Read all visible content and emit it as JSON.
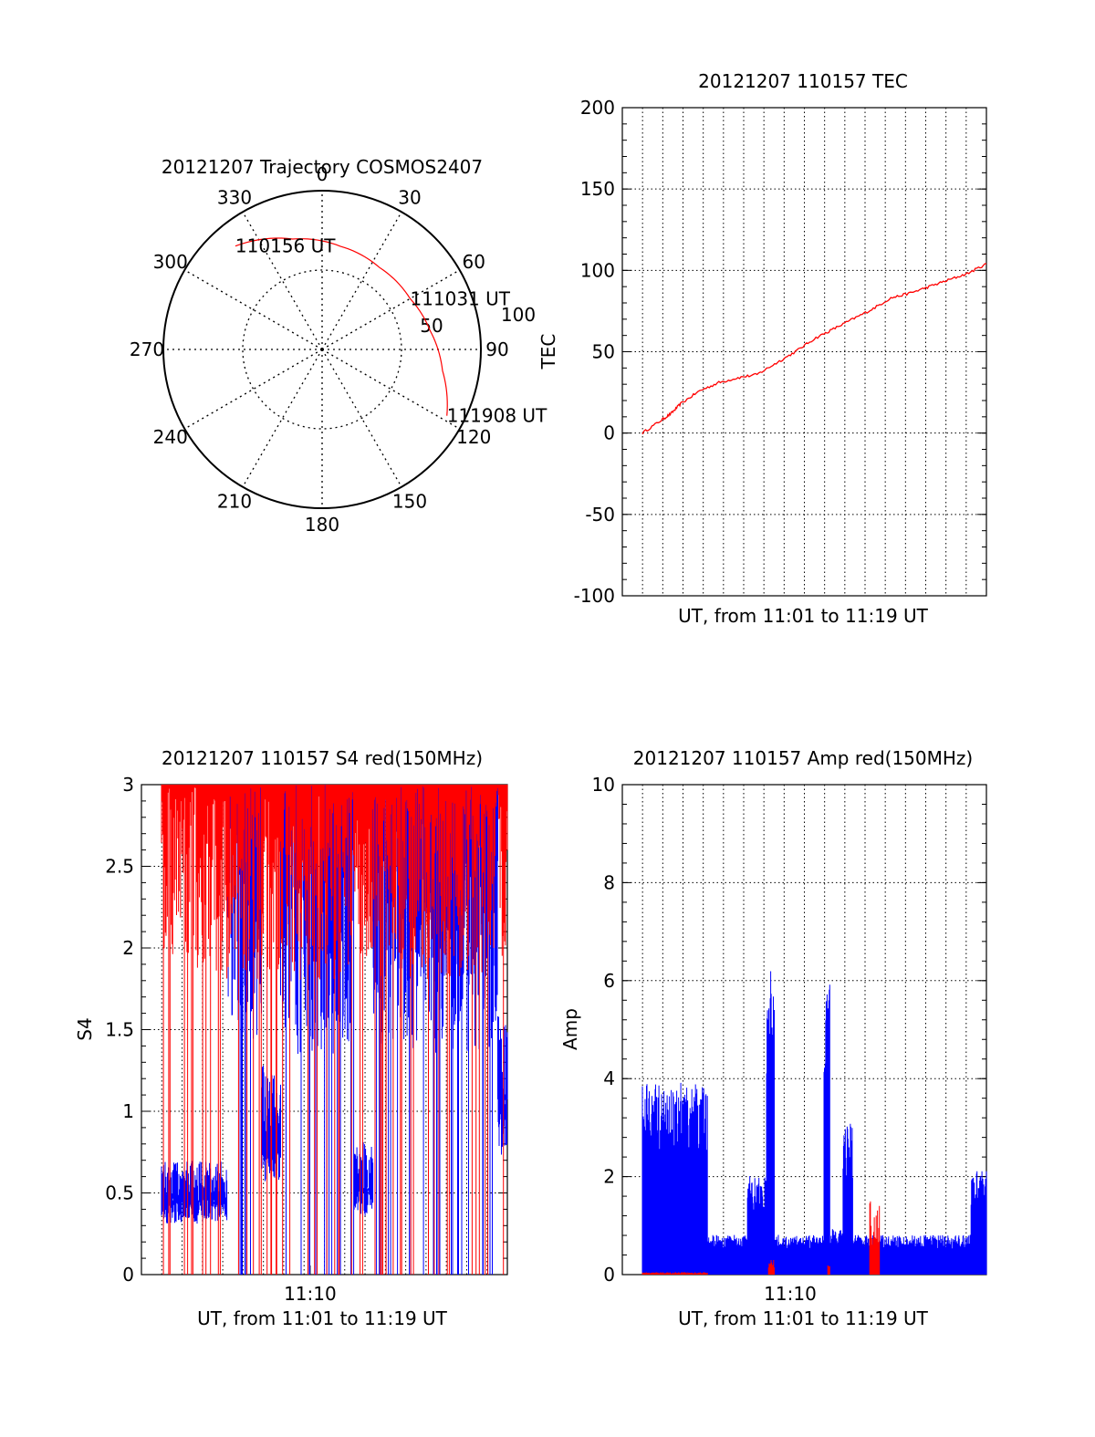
{
  "chart_data": [
    {
      "type": "polar",
      "title": "20121207 Trajectory COSMOS2407",
      "angle_labels": [
        "0",
        "30",
        "60",
        "90",
        "120",
        "150",
        "180",
        "210",
        "240",
        "270",
        "300",
        "330"
      ],
      "radial_labels": [
        "50",
        "100"
      ],
      "rlim": [
        0,
        100
      ],
      "grid": true,
      "series": [
        {
          "color": "#ff0000",
          "points": [
            {
              "az": 320,
              "r": 85
            },
            {
              "az": 345,
              "r": 72
            },
            {
              "az": 10,
              "r": 66
            },
            {
              "az": 35,
              "r": 63
            },
            {
              "az": 60,
              "r": 64
            },
            {
              "az": 80,
              "r": 69
            },
            {
              "az": 100,
              "r": 77
            },
            {
              "az": 118,
              "r": 89
            }
          ]
        }
      ],
      "annotations": [
        {
          "text": "110156 UT",
          "az": 320,
          "r": 85
        },
        {
          "text": "111031 UT",
          "az": 60,
          "r": 64
        },
        {
          "text": "111908 UT",
          "az": 118,
          "r": 89
        }
      ]
    },
    {
      "type": "line",
      "title": "20121207 110157 TEC",
      "xlabel": "UT, from 11:01 to 11:19 UT",
      "ylabel": "TEC",
      "ylim": [
        -100,
        200
      ],
      "yticks": [
        "200",
        "150",
        "100",
        "50",
        "0",
        "-50",
        "-100"
      ],
      "xlim": [
        0,
        18
      ],
      "grid": true,
      "series": [
        {
          "color": "#ff0000",
          "x": [
            0,
            1,
            1.5,
            2,
            3,
            4,
            5,
            6,
            7,
            8,
            9,
            10,
            11,
            12,
            13,
            14,
            15,
            16,
            17,
            18
          ],
          "y": [
            0,
            8,
            12,
            18,
            26,
            31,
            34,
            36,
            43,
            50,
            58,
            64,
            70,
            76,
            83,
            86,
            90,
            94,
            98,
            104
          ]
        }
      ]
    },
    {
      "type": "line",
      "title": "20121207 110157 S4 red(150MHz)",
      "xlabel": "UT, from 11:01 to 11:19 UT",
      "ylabel": "S4",
      "ylim": [
        0,
        3
      ],
      "yticks": [
        "3",
        "2.5",
        "2",
        "1.5",
        "1",
        "0.5",
        "0"
      ],
      "xlim": [
        0,
        18
      ],
      "xticks": [
        {
          "x": 8.3,
          "label": "11:10"
        }
      ],
      "grid": true,
      "series": [
        {
          "color": "#0000ff",
          "style": "noisy",
          "segments": [
            [
              0,
              3.4,
              0.52
            ],
            [
              3.4,
              5.2,
              3.0
            ],
            [
              5.2,
              6.2,
              0.95
            ],
            [
              6.2,
              10.0,
              3.0
            ],
            [
              10.0,
              11.0,
              0.6
            ],
            [
              11.0,
              17.5,
              3.0
            ],
            [
              17.5,
              18,
              1.2
            ]
          ]
        },
        {
          "color": "#ff0000",
          "style": "spikes",
          "segments": [
            [
              0,
              3.4,
              3.0
            ],
            [
              3.4,
              6.0,
              3.0
            ],
            [
              6.0,
              12.5,
              3.0
            ],
            [
              12.5,
              18,
              3.0
            ]
          ]
        }
      ]
    },
    {
      "type": "line",
      "title": "20121207 110157 Amp red(150MHz)",
      "xlabel": "UT, from 11:01 to 11:19 UT",
      "ylabel": "Amp",
      "ylim": [
        0,
        10
      ],
      "yticks": [
        "10",
        "8",
        "6",
        "4",
        "2",
        "0"
      ],
      "xlim": [
        0,
        18
      ],
      "xticks": [
        {
          "x": 8.3,
          "label": "11:10"
        }
      ],
      "grid": true,
      "series": [
        {
          "color": "#0000ff",
          "style": "noisy",
          "segments": [
            [
              0,
              3.4,
              2.9
            ],
            [
              3.4,
              5.5,
              0.6
            ],
            [
              5.5,
              6.5,
              1.5
            ],
            [
              6.5,
              6.9,
              4.6
            ],
            [
              6.9,
              9.5,
              0.6
            ],
            [
              9.5,
              9.8,
              4.4
            ],
            [
              9.8,
              10.5,
              0.7
            ],
            [
              10.5,
              11.0,
              2.3
            ],
            [
              11.0,
              17.2,
              0.6
            ],
            [
              17.2,
              18,
              1.6
            ]
          ]
        },
        {
          "color": "#ff0000",
          "style": "spikes",
          "segments": [
            [
              0,
              3.4,
              0.05
            ],
            [
              6.6,
              6.9,
              0.3
            ],
            [
              9.7,
              9.8,
              0.2
            ],
            [
              11.9,
              12.4,
              1.5
            ]
          ]
        }
      ]
    }
  ]
}
